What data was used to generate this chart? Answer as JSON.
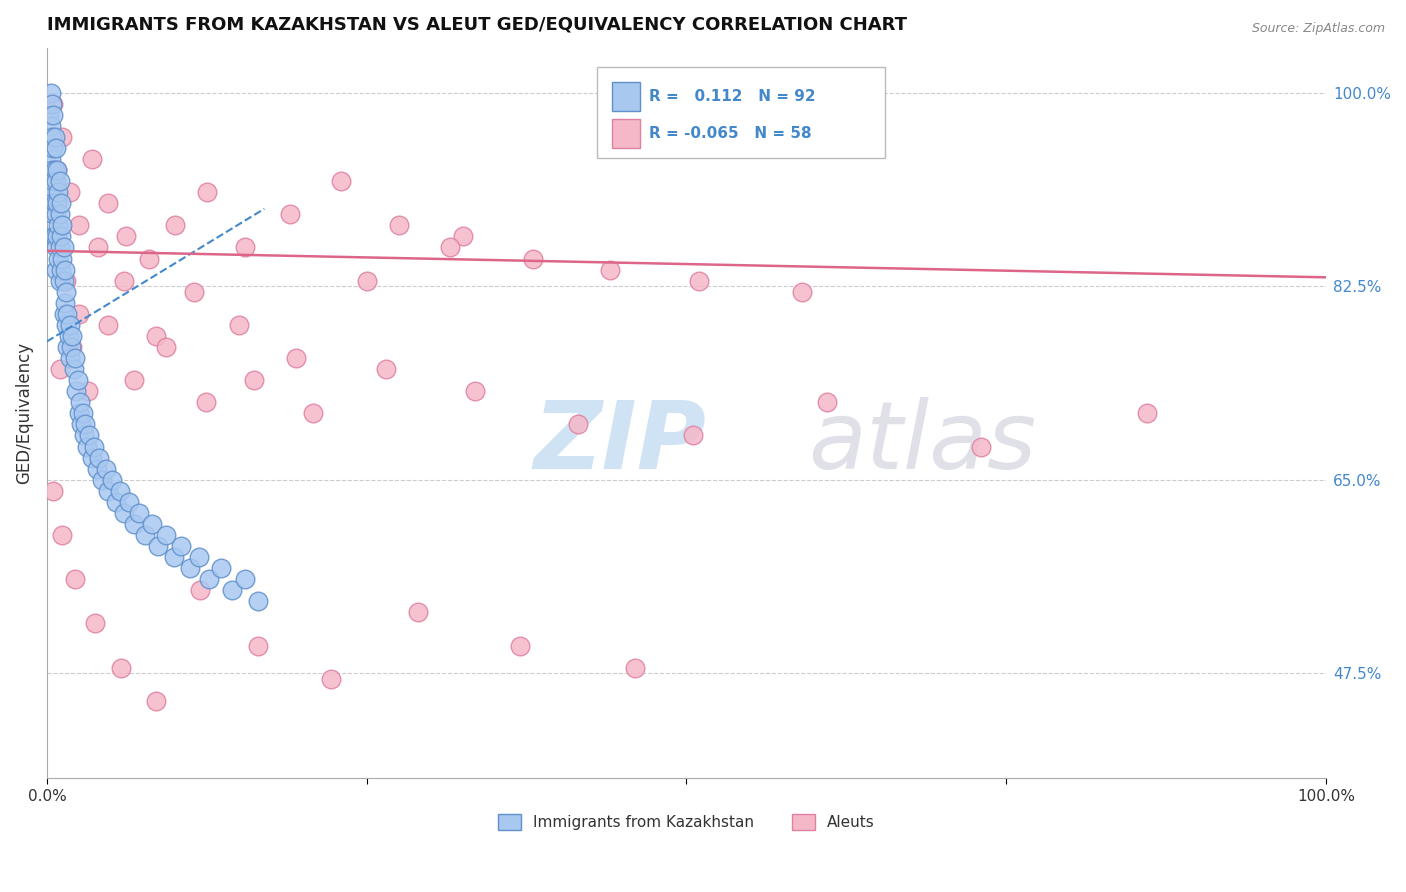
{
  "title": "IMMIGRANTS FROM KAZAKHSTAN VS ALEUT GED/EQUIVALENCY CORRELATION CHART",
  "source": "Source: ZipAtlas.com",
  "ylabel": "GED/Equivalency",
  "xlim": [
    0.0,
    1.0
  ],
  "ylim": [
    0.38,
    1.04
  ],
  "yticks": [
    0.475,
    0.65,
    0.825,
    1.0
  ],
  "ytick_labels": [
    "47.5%",
    "65.0%",
    "82.5%",
    "100.0%"
  ],
  "xticks": [
    0.0,
    0.25,
    0.5,
    0.75,
    1.0
  ],
  "xtick_labels": [
    "0.0%",
    "",
    "",
    "",
    "100.0%"
  ],
  "blue_R": 0.112,
  "blue_N": 92,
  "pink_R": -0.065,
  "pink_N": 58,
  "blue_color": "#A8C8F0",
  "pink_color": "#F5B8C8",
  "blue_edge": "#6090CC",
  "pink_edge": "#E080A0",
  "trend_blue_color": "#4488CC",
  "trend_pink_color": "#DD6688",
  "label_color": "#4488CC",
  "background_color": "#FFFFFF",
  "grid_color": "#CCCCCC",
  "watermark_ZIP": "ZIP",
  "watermark_atlas": "atlas",
  "legend_blue_label": "Immigrants from Kazakhstan",
  "legend_pink_label": "Aleuts",
  "blue_x": [
    0.002,
    0.002,
    0.003,
    0.003,
    0.003,
    0.003,
    0.004,
    0.004,
    0.004,
    0.004,
    0.005,
    0.005,
    0.005,
    0.005,
    0.005,
    0.006,
    0.006,
    0.006,
    0.006,
    0.007,
    0.007,
    0.007,
    0.007,
    0.007,
    0.008,
    0.008,
    0.008,
    0.009,
    0.009,
    0.009,
    0.01,
    0.01,
    0.01,
    0.01,
    0.011,
    0.011,
    0.011,
    0.012,
    0.012,
    0.013,
    0.013,
    0.013,
    0.014,
    0.014,
    0.015,
    0.015,
    0.016,
    0.016,
    0.017,
    0.018,
    0.018,
    0.019,
    0.02,
    0.021,
    0.022,
    0.023,
    0.024,
    0.025,
    0.026,
    0.027,
    0.028,
    0.029,
    0.03,
    0.031,
    0.033,
    0.035,
    0.037,
    0.039,
    0.041,
    0.043,
    0.046,
    0.048,
    0.051,
    0.054,
    0.057,
    0.06,
    0.064,
    0.068,
    0.072,
    0.077,
    0.082,
    0.087,
    0.093,
    0.099,
    0.105,
    0.112,
    0.119,
    0.127,
    0.136,
    0.145,
    0.155,
    0.165
  ],
  "blue_y": [
    0.98,
    0.95,
    1.0,
    0.97,
    0.94,
    0.91,
    0.99,
    0.96,
    0.93,
    0.9,
    0.98,
    0.95,
    0.92,
    0.89,
    0.87,
    0.96,
    0.93,
    0.9,
    0.87,
    0.95,
    0.92,
    0.89,
    0.86,
    0.84,
    0.93,
    0.9,
    0.87,
    0.91,
    0.88,
    0.85,
    0.92,
    0.89,
    0.86,
    0.83,
    0.9,
    0.87,
    0.84,
    0.88,
    0.85,
    0.86,
    0.83,
    0.8,
    0.84,
    0.81,
    0.82,
    0.79,
    0.8,
    0.77,
    0.78,
    0.79,
    0.76,
    0.77,
    0.78,
    0.75,
    0.76,
    0.73,
    0.74,
    0.71,
    0.72,
    0.7,
    0.71,
    0.69,
    0.7,
    0.68,
    0.69,
    0.67,
    0.68,
    0.66,
    0.67,
    0.65,
    0.66,
    0.64,
    0.65,
    0.63,
    0.64,
    0.62,
    0.63,
    0.61,
    0.62,
    0.6,
    0.61,
    0.59,
    0.6,
    0.58,
    0.59,
    0.57,
    0.58,
    0.56,
    0.57,
    0.55,
    0.56,
    0.54
  ],
  "pink_x": [
    0.005,
    0.008,
    0.012,
    0.018,
    0.025,
    0.035,
    0.048,
    0.062,
    0.08,
    0.1,
    0.125,
    0.155,
    0.19,
    0.23,
    0.275,
    0.325,
    0.38,
    0.44,
    0.51,
    0.59,
    0.015,
    0.025,
    0.04,
    0.06,
    0.085,
    0.115,
    0.15,
    0.195,
    0.25,
    0.315,
    0.01,
    0.02,
    0.032,
    0.048,
    0.068,
    0.093,
    0.124,
    0.162,
    0.208,
    0.265,
    0.335,
    0.415,
    0.505,
    0.61,
    0.73,
    0.86,
    0.005,
    0.012,
    0.022,
    0.038,
    0.058,
    0.085,
    0.12,
    0.165,
    0.222,
    0.29,
    0.37,
    0.46
  ],
  "pink_y": [
    0.99,
    0.93,
    0.96,
    0.91,
    0.88,
    0.94,
    0.9,
    0.87,
    0.85,
    0.88,
    0.91,
    0.86,
    0.89,
    0.92,
    0.88,
    0.87,
    0.85,
    0.84,
    0.83,
    0.82,
    0.83,
    0.8,
    0.86,
    0.83,
    0.78,
    0.82,
    0.79,
    0.76,
    0.83,
    0.86,
    0.75,
    0.77,
    0.73,
    0.79,
    0.74,
    0.77,
    0.72,
    0.74,
    0.71,
    0.75,
    0.73,
    0.7,
    0.69,
    0.72,
    0.68,
    0.71,
    0.64,
    0.6,
    0.56,
    0.52,
    0.48,
    0.45,
    0.55,
    0.5,
    0.47,
    0.53,
    0.5,
    0.48
  ],
  "pink_trend_x0": 0.0,
  "pink_trend_y0": 0.857,
  "pink_trend_x1": 1.0,
  "pink_trend_y1": 0.833,
  "blue_trend_x0": 0.0,
  "blue_trend_y0": 0.775,
  "blue_trend_x1": 0.17,
  "blue_trend_y1": 0.895
}
